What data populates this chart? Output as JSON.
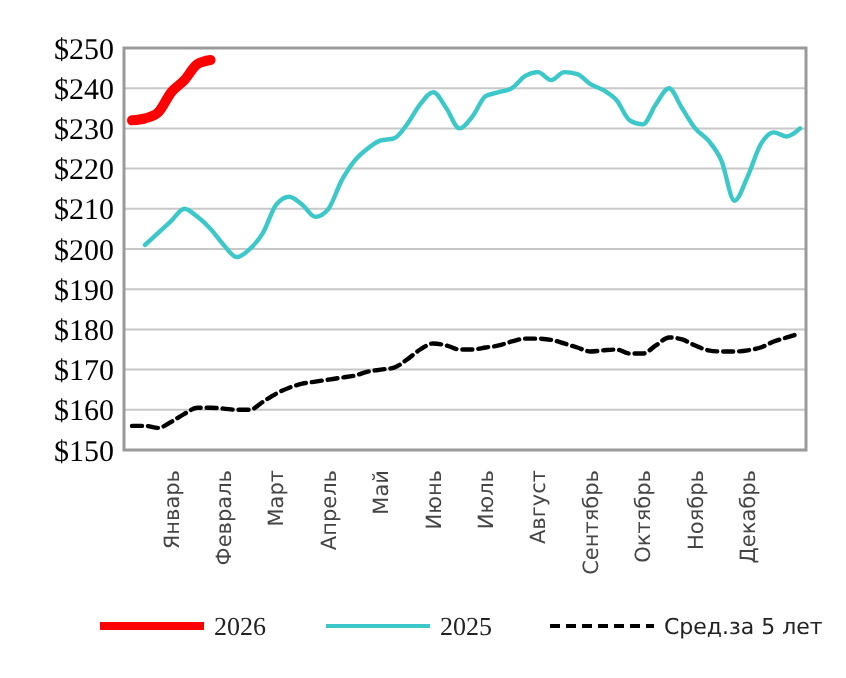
{
  "chart_data": {
    "type": "line",
    "categories": [
      null,
      null,
      null,
      "Январь",
      null,
      null,
      null,
      "Февраль",
      null,
      null,
      null,
      "Март",
      null,
      null,
      null,
      "Апрель",
      null,
      null,
      null,
      "Май",
      null,
      null,
      null,
      "Июнь",
      null,
      null,
      null,
      "Июль",
      null,
      null,
      null,
      "Август",
      null,
      null,
      null,
      "Сентябрь",
      null,
      null,
      null,
      "Октябрь",
      null,
      null,
      null,
      "Ноябрь",
      null,
      null,
      null,
      "Декабрь",
      null,
      null,
      null,
      null
    ],
    "ylim": [
      150,
      250
    ],
    "yticks": [
      {
        "value": 150,
        "label": "$150"
      },
      {
        "value": 160,
        "label": "$160"
      },
      {
        "value": 170,
        "label": "$170"
      },
      {
        "value": 180,
        "label": "$180"
      },
      {
        "value": 190,
        "label": "$190"
      },
      {
        "value": 200,
        "label": "$200"
      },
      {
        "value": 210,
        "label": "$210"
      },
      {
        "value": 220,
        "label": "$220"
      },
      {
        "value": 230,
        "label": "$230"
      },
      {
        "value": 240,
        "label": "$240"
      },
      {
        "value": 250,
        "label": "$250"
      }
    ],
    "grid": "y",
    "legend": "bottom",
    "marker": "none",
    "series": [
      {
        "name": "2026",
        "color": "#ff0000",
        "line_style": "solid",
        "values": [
          232,
          232.5,
          234,
          239,
          242,
          246,
          247,
          null,
          null,
          null,
          null,
          null,
          null,
          null,
          null,
          null,
          null,
          null,
          null,
          null,
          null,
          null,
          null,
          null,
          null,
          null,
          null,
          null,
          null,
          null,
          null,
          null,
          null,
          null,
          null,
          null,
          null,
          null,
          null,
          null,
          null,
          null,
          null,
          null,
          null,
          null,
          null,
          null,
          null,
          null,
          null,
          null
        ]
      },
      {
        "name": "2025",
        "color": "#3cc8c8",
        "line_style": "solid",
        "values": [
          null,
          201,
          204,
          207,
          210,
          208,
          205,
          201,
          198,
          200,
          204,
          211,
          213,
          211,
          208,
          210,
          217,
          222,
          225,
          227,
          227.5,
          231,
          236,
          239,
          235,
          230,
          233,
          238,
          239,
          240,
          243,
          244,
          242,
          244,
          243.5,
          241,
          239.5,
          237,
          232,
          231,
          236,
          240,
          235,
          230,
          227,
          222,
          212,
          218,
          226,
          229,
          228,
          230
        ]
      },
      {
        "name": "Сред.за 5 лет",
        "color": "#000000",
        "line_style": "dashed",
        "values": [
          156,
          156,
          155.5,
          157,
          159,
          160.5,
          160.5,
          160.3,
          160,
          160,
          162,
          164,
          165.5,
          166.5,
          167,
          167.5,
          168,
          168.5,
          169.5,
          170,
          170.5,
          172.5,
          175,
          176.5,
          176,
          175,
          175,
          175.5,
          176,
          177,
          177.7,
          177.7,
          177.4,
          176.5,
          175.5,
          174.5,
          174.8,
          175,
          174,
          174,
          176,
          178,
          177.5,
          176,
          174.8,
          174.5,
          174.5,
          174.8,
          175.5,
          177,
          178,
          179
        ]
      }
    ]
  }
}
